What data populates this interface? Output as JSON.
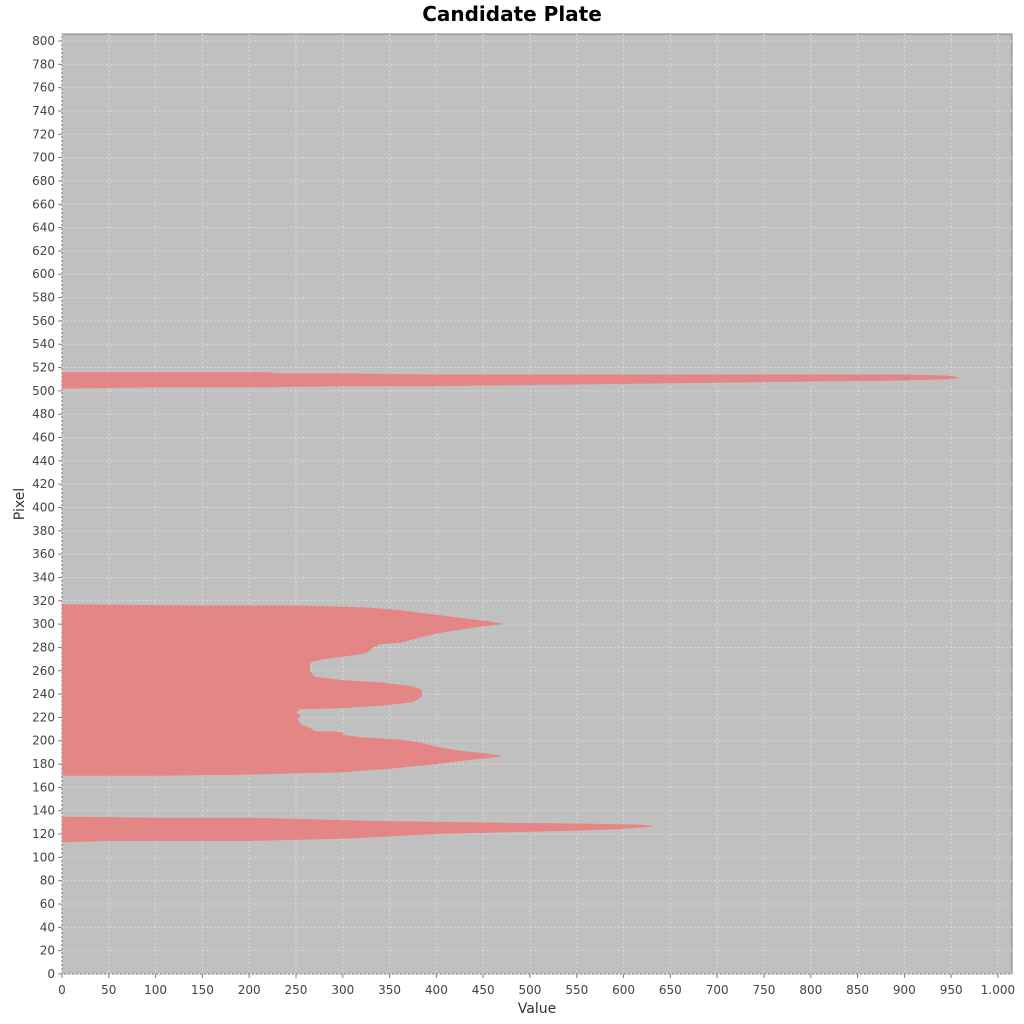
{
  "chart_data": {
    "type": "area",
    "orientation": "horizontal",
    "title": "Candidate Plate",
    "xlabel": "Value",
    "ylabel": "Pixel",
    "xlim": [
      0,
      1015
    ],
    "ylim": [
      0,
      806
    ],
    "x_ticks": [
      0,
      50,
      100,
      150,
      200,
      250,
      300,
      350,
      400,
      450,
      500,
      550,
      600,
      650,
      700,
      750,
      800,
      850,
      900,
      950,
      1000
    ],
    "x_tick_labels": [
      "0",
      "50",
      "100",
      "150",
      "200",
      "250",
      "300",
      "350",
      "400",
      "450",
      "500",
      "550",
      "600",
      "650",
      "700",
      "750",
      "800",
      "850",
      "900",
      "950",
      "1.000"
    ],
    "y_ticks": [
      0,
      20,
      40,
      60,
      80,
      100,
      120,
      140,
      160,
      180,
      200,
      220,
      240,
      260,
      280,
      300,
      320,
      340,
      360,
      380,
      400,
      420,
      440,
      460,
      480,
      500,
      520,
      540,
      560,
      580,
      600,
      620,
      640,
      660,
      680,
      700,
      720,
      740,
      760,
      780,
      800
    ],
    "grid": true,
    "background_color": "#c0c0c0",
    "fill_color": "#e48686",
    "series": [
      {
        "points": [
          [
            0,
            113
          ],
          [
            50,
            114
          ],
          [
            150,
            114
          ],
          [
            200,
            114
          ],
          [
            250,
            115
          ],
          [
            300,
            116
          ],
          [
            350,
            118
          ],
          [
            400,
            120
          ],
          [
            500,
            122
          ],
          [
            550,
            123
          ],
          [
            590,
            124
          ],
          [
            610,
            125
          ],
          [
            625,
            126
          ],
          [
            632,
            127
          ],
          [
            620,
            128
          ],
          [
            560,
            129
          ],
          [
            450,
            130
          ],
          [
            350,
            131
          ],
          [
            300,
            132
          ],
          [
            250,
            133
          ],
          [
            200,
            134
          ],
          [
            100,
            134
          ],
          [
            0,
            135
          ]
        ]
      },
      {
        "points": [
          [
            0,
            170
          ],
          [
            100,
            170
          ],
          [
            200,
            171
          ],
          [
            250,
            172
          ],
          [
            300,
            173
          ],
          [
            350,
            176
          ],
          [
            400,
            180
          ],
          [
            440,
            184
          ],
          [
            465,
            186
          ],
          [
            470,
            187
          ],
          [
            455,
            189
          ],
          [
            420,
            192
          ],
          [
            400,
            195
          ],
          [
            380,
            199
          ],
          [
            360,
            201
          ],
          [
            320,
            203
          ],
          [
            300,
            205
          ],
          [
            300,
            207
          ],
          [
            290,
            208
          ],
          [
            270,
            208
          ],
          [
            265,
            211
          ],
          [
            255,
            214
          ],
          [
            252,
            218
          ],
          [
            255,
            222
          ],
          [
            250,
            224
          ],
          [
            254,
            227
          ],
          [
            300,
            228
          ],
          [
            340,
            230
          ],
          [
            375,
            233
          ],
          [
            385,
            238
          ],
          [
            384,
            244
          ],
          [
            372,
            247
          ],
          [
            340,
            250
          ],
          [
            300,
            252
          ],
          [
            270,
            255
          ],
          [
            265,
            260
          ],
          [
            265,
            266
          ],
          [
            268,
            268
          ],
          [
            280,
            270
          ],
          [
            300,
            272
          ],
          [
            325,
            275
          ],
          [
            333,
            280
          ],
          [
            340,
            283
          ],
          [
            362,
            284
          ],
          [
            375,
            287
          ],
          [
            400,
            292
          ],
          [
            440,
            297
          ],
          [
            460,
            299
          ],
          [
            473,
            300
          ],
          [
            460,
            302
          ],
          [
            440,
            304
          ],
          [
            400,
            308
          ],
          [
            360,
            312
          ],
          [
            330,
            314
          ],
          [
            300,
            315
          ],
          [
            250,
            316
          ],
          [
            150,
            316
          ],
          [
            0,
            317
          ]
        ]
      },
      {
        "points": [
          [
            0,
            502
          ],
          [
            100,
            503
          ],
          [
            200,
            503
          ],
          [
            300,
            504
          ],
          [
            400,
            504
          ],
          [
            500,
            505
          ],
          [
            600,
            506
          ],
          [
            700,
            507
          ],
          [
            800,
            508
          ],
          [
            900,
            509
          ],
          [
            945,
            510
          ],
          [
            960,
            511
          ],
          [
            950,
            513
          ],
          [
            900,
            514
          ],
          [
            800,
            514
          ],
          [
            700,
            514
          ],
          [
            600,
            514
          ],
          [
            500,
            514
          ],
          [
            400,
            514
          ],
          [
            300,
            515
          ],
          [
            230,
            515
          ],
          [
            220,
            516
          ],
          [
            0,
            516
          ]
        ]
      }
    ]
  }
}
